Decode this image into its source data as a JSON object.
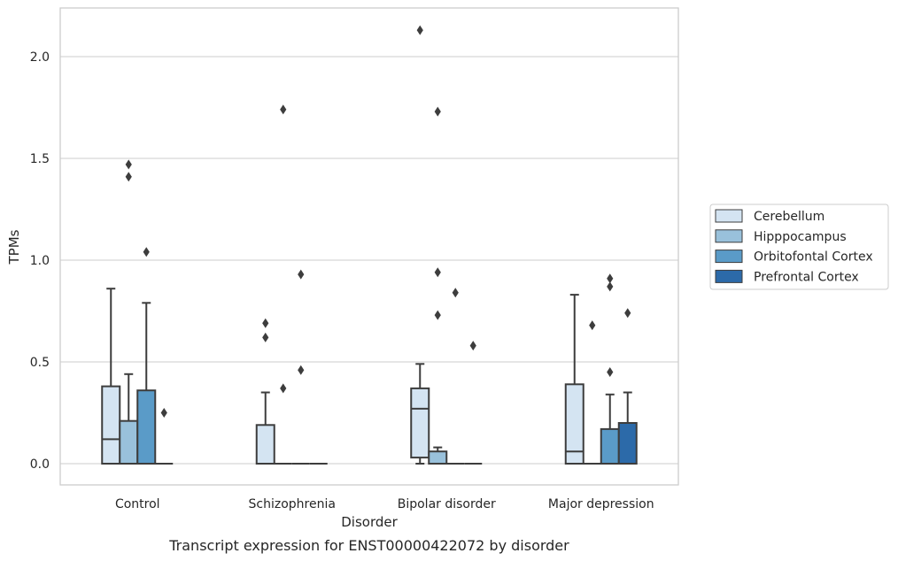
{
  "chart_data": {
    "type": "box",
    "caption": "Transcript expression for ENST00000422072 by disorder",
    "xlabel": "Disorder",
    "ylabel": "TPMs",
    "ylim": [
      -0.1,
      2.25
    ],
    "yticks": [
      0.0,
      0.5,
      1.0,
      1.5,
      2.0
    ],
    "ytick_labels": [
      "0.0",
      "0.5",
      "1.0",
      "1.5",
      "2.0"
    ],
    "grid": "horizontal",
    "legend_position": "right",
    "categories": [
      "Control",
      "Schizophrenia",
      "Bipolar disorder",
      "Major depression"
    ],
    "series": [
      {
        "name": "Cerebellum",
        "color": "#d4e4f2",
        "boxes": [
          {
            "q1": 0.0,
            "median": 0.12,
            "q3": 0.38,
            "whisker_low": 0.0,
            "whisker_high": 0.86,
            "outliers": []
          },
          {
            "q1": 0.0,
            "median": 0.0,
            "q3": 0.19,
            "whisker_low": 0.0,
            "whisker_high": 0.35,
            "outliers": [
              0.69,
              0.62
            ]
          },
          {
            "q1": 0.03,
            "median": 0.27,
            "q3": 0.37,
            "whisker_low": 0.0,
            "whisker_high": 0.49,
            "outliers": [
              2.13
            ]
          },
          {
            "q1": 0.0,
            "median": 0.06,
            "q3": 0.39,
            "whisker_low": 0.0,
            "whisker_high": 0.83,
            "outliers": []
          }
        ]
      },
      {
        "name": "Hipppocampus",
        "color": "#99c1db",
        "boxes": [
          {
            "q1": 0.0,
            "median": 0.0,
            "q3": 0.21,
            "whisker_low": 0.0,
            "whisker_high": 0.44,
            "outliers": [
              1.47,
              1.41
            ]
          },
          {
            "q1": 0.0,
            "median": 0.0,
            "q3": 0.0,
            "whisker_low": 0.0,
            "whisker_high": 0.0,
            "outliers": [
              1.74,
              0.37
            ]
          },
          {
            "q1": 0.0,
            "median": 0.0,
            "q3": 0.06,
            "whisker_low": 0.0,
            "whisker_high": 0.08,
            "outliers": [
              1.73,
              0.94,
              0.73
            ]
          },
          {
            "q1": 0.0,
            "median": 0.0,
            "q3": 0.0,
            "whisker_low": 0.0,
            "whisker_high": 0.0,
            "outliers": [
              0.68
            ]
          }
        ]
      },
      {
        "name": "Orbitofontal Cortex",
        "color": "#5a9bc8",
        "boxes": [
          {
            "q1": 0.0,
            "median": 0.0,
            "q3": 0.36,
            "whisker_low": 0.0,
            "whisker_high": 0.79,
            "outliers": [
              1.04
            ]
          },
          {
            "q1": 0.0,
            "median": 0.0,
            "q3": 0.0,
            "whisker_low": 0.0,
            "whisker_high": 0.0,
            "outliers": [
              0.93,
              0.46
            ]
          },
          {
            "q1": 0.0,
            "median": 0.0,
            "q3": 0.0,
            "whisker_low": 0.0,
            "whisker_high": 0.0,
            "outliers": [
              0.84
            ]
          },
          {
            "q1": 0.0,
            "median": 0.0,
            "q3": 0.17,
            "whisker_low": 0.0,
            "whisker_high": 0.34,
            "outliers": [
              0.91,
              0.87,
              0.45
            ]
          }
        ]
      },
      {
        "name": "Prefrontal Cortex",
        "color": "#2c6aa9",
        "boxes": [
          {
            "q1": 0.0,
            "median": 0.0,
            "q3": 0.0,
            "whisker_low": 0.0,
            "whisker_high": 0.0,
            "outliers": [
              0.25
            ]
          },
          {
            "q1": 0.0,
            "median": 0.0,
            "q3": 0.0,
            "whisker_low": 0.0,
            "whisker_high": 0.0,
            "outliers": []
          },
          {
            "q1": 0.0,
            "median": 0.0,
            "q3": 0.0,
            "whisker_low": 0.0,
            "whisker_high": 0.0,
            "outliers": [
              0.58
            ]
          },
          {
            "q1": 0.0,
            "median": 0.0,
            "q3": 0.2,
            "whisker_low": 0.0,
            "whisker_high": 0.35,
            "outliers": [
              0.74
            ]
          }
        ]
      }
    ]
  }
}
